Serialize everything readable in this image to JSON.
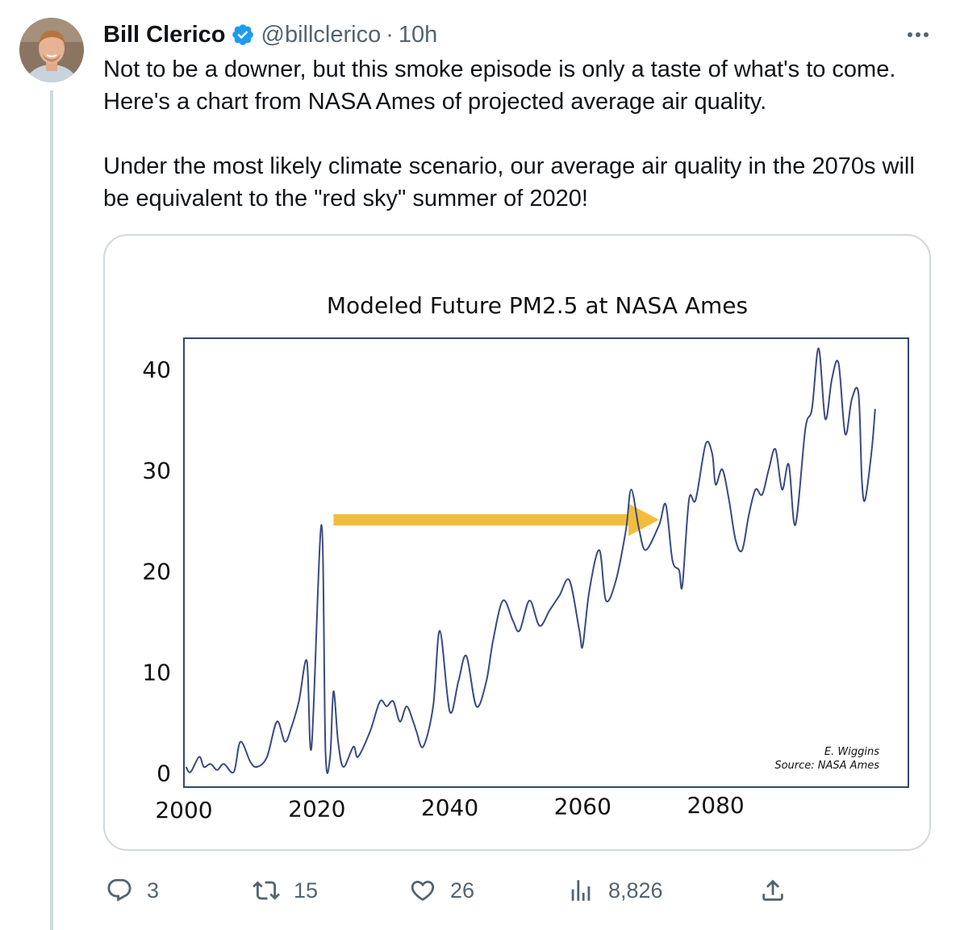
{
  "tweet": {
    "author_name": "Bill Clerico",
    "handle": "@billclerico",
    "separator": "·",
    "time": "10h",
    "paragraphs": [
      "Not to be a downer, but this smoke episode is only a taste of what's to come. Here's a chart from NASA Ames of projected average air quality.",
      "Under the most likely climate  scenario, our average air quality in the 2070s will be equivalent to the \"red sky\" summer of 2020!"
    ],
    "icons": {
      "verified": "verified-badge-icon",
      "more": "more-options-icon"
    }
  },
  "actions": {
    "reply": {
      "icon": "reply-icon",
      "count": "3"
    },
    "retweet": {
      "icon": "retweet-icon",
      "count": "15"
    },
    "like": {
      "icon": "heart-icon",
      "count": "26"
    },
    "views": {
      "icon": "views-icon",
      "count": "8,826"
    },
    "share": {
      "icon": "share-icon"
    }
  },
  "colors": {
    "verified": "#1d9bf0",
    "secondary_text": "#536471",
    "line": "#3a4a80",
    "arrow": "#f2bd3c",
    "plot_border": "#33466e"
  },
  "chart_data": {
    "type": "line",
    "title": "Modeled Future PM2.5 at NASA Ames",
    "xlabel": "",
    "ylabel": "",
    "x_tick_labels": [
      "2000",
      "2020",
      "2040",
      "2060",
      "2080"
    ],
    "y_tick_labels": [
      "0",
      "10",
      "20",
      "30",
      "40"
    ],
    "xlim": [
      2000,
      2109
    ],
    "ylim": [
      -1.5,
      43
    ],
    "grid": false,
    "legend": "none",
    "credit": [
      "E. Wiggins",
      "Source: NASA Ames"
    ],
    "annotation": "arrow from the 2020 peak horizontally to the 2072 level",
    "arrow": {
      "x_start": 2022.5,
      "x_end": 2071.5,
      "y": 25
    },
    "series": [
      {
        "values": [
          [
            2000.3,
            0.5
          ],
          [
            2001.0,
            0.0
          ],
          [
            2002.3,
            1.5
          ],
          [
            2003.0,
            0.5
          ],
          [
            2004.0,
            0.8
          ],
          [
            2005.0,
            0.2
          ],
          [
            2006.0,
            0.8
          ],
          [
            2007.5,
            0.0
          ],
          [
            2008.5,
            3.0
          ],
          [
            2010.0,
            1.0
          ],
          [
            2011.0,
            0.5
          ],
          [
            2012.5,
            1.5
          ],
          [
            2014.0,
            5.0
          ],
          [
            2015.2,
            3.0
          ],
          [
            2016.2,
            4.5
          ],
          [
            2017.3,
            7.0
          ],
          [
            2018.5,
            11.0
          ],
          [
            2019.2,
            2.5
          ],
          [
            2020.7,
            24.5
          ],
          [
            2021.3,
            2.0
          ],
          [
            2022.0,
            1.5
          ],
          [
            2022.5,
            8.0
          ],
          [
            2023.2,
            3.0
          ],
          [
            2024.0,
            0.5
          ],
          [
            2025.5,
            2.5
          ],
          [
            2026.2,
            1.5
          ],
          [
            2028.0,
            4.0
          ],
          [
            2029.5,
            7.0
          ],
          [
            2030.5,
            6.5
          ],
          [
            2031.5,
            7.0
          ],
          [
            2032.5,
            5.0
          ],
          [
            2033.5,
            6.5
          ],
          [
            2034.5,
            5.0
          ],
          [
            2035.0,
            4.0
          ],
          [
            2036.0,
            2.5
          ],
          [
            2037.5,
            6.5
          ],
          [
            2038.5,
            14.0
          ],
          [
            2040.0,
            6.0
          ],
          [
            2041.3,
            9.0
          ],
          [
            2042.5,
            11.5
          ],
          [
            2044.0,
            6.5
          ],
          [
            2045.5,
            9.0
          ],
          [
            2046.5,
            13.0
          ],
          [
            2048.0,
            17.0
          ],
          [
            2049.5,
            15.0
          ],
          [
            2050.5,
            14.0
          ],
          [
            2052.0,
            17.0
          ],
          [
            2053.5,
            14.5
          ],
          [
            2055.0,
            16.0
          ],
          [
            2056.5,
            17.5
          ],
          [
            2058.0,
            19.0
          ],
          [
            2059.5,
            14.0
          ],
          [
            2060.0,
            12.5
          ],
          [
            2061.0,
            18.0
          ],
          [
            2062.5,
            22.0
          ],
          [
            2063.5,
            17.0
          ],
          [
            2065.0,
            19.0
          ],
          [
            2066.5,
            24.0
          ],
          [
            2067.3,
            28.0
          ],
          [
            2068.5,
            24.0
          ],
          [
            2069.5,
            22.0
          ],
          [
            2071.5,
            24.5
          ],
          [
            2072.5,
            26.5
          ],
          [
            2073.5,
            21.0
          ],
          [
            2074.5,
            20.0
          ],
          [
            2075.0,
            18.5
          ],
          [
            2076.0,
            27.0
          ],
          [
            2077.0,
            27.0
          ],
          [
            2078.5,
            32.5
          ],
          [
            2079.5,
            31.5
          ],
          [
            2080.0,
            28.5
          ],
          [
            2081.0,
            30.0
          ],
          [
            2082.0,
            27.0
          ],
          [
            2083.0,
            23.0
          ],
          [
            2084.0,
            22.0
          ],
          [
            2085.0,
            25.5
          ],
          [
            2086.0,
            28.0
          ],
          [
            2087.0,
            27.5
          ],
          [
            2088.0,
            30.0
          ],
          [
            2089.0,
            32.0
          ],
          [
            2090.0,
            28.0
          ],
          [
            2091.0,
            30.5
          ],
          [
            2092.0,
            24.5
          ],
          [
            2093.5,
            34.0
          ],
          [
            2094.5,
            36.0
          ],
          [
            2095.5,
            42.0
          ],
          [
            2096.5,
            35.0
          ],
          [
            2097.5,
            39.0
          ],
          [
            2098.5,
            40.5
          ],
          [
            2099.5,
            33.5
          ],
          [
            2100.5,
            37.0
          ],
          [
            2101.5,
            37.5
          ],
          [
            2102.0,
            29.0
          ],
          [
            2102.5,
            27.0
          ],
          [
            2103.5,
            32.0
          ],
          [
            2104.0,
            36.0
          ]
        ]
      }
    ]
  }
}
